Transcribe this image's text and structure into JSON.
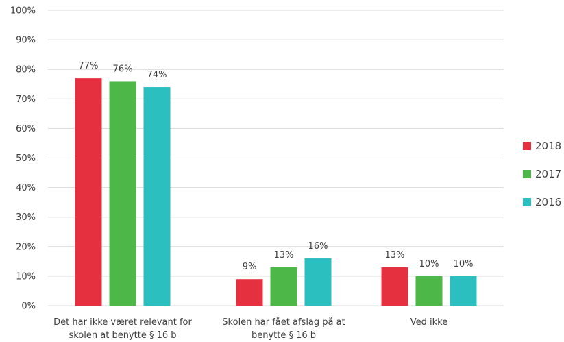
{
  "chart_data": {
    "type": "bar",
    "categories": [
      [
        "Det har ikke været relevant for",
        "skolen at benytte § 16 b"
      ],
      [
        "Skolen har fået afslag på at",
        "benytte § 16 b"
      ],
      [
        "Ved ikke"
      ]
    ],
    "series": [
      {
        "name": "2018",
        "values": [
          77,
          9,
          13
        ],
        "labels": [
          "77%",
          "9%",
          "13%"
        ],
        "color": "#e5303f"
      },
      {
        "name": "2017",
        "values": [
          76,
          13,
          10
        ],
        "labels": [
          "76%",
          "13%",
          "10%"
        ],
        "color": "#4db848"
      },
      {
        "name": "2016",
        "values": [
          74,
          16,
          10
        ],
        "labels": [
          "74%",
          "16%",
          "10%"
        ],
        "color": "#2bbfbf"
      }
    ],
    "yticks": [
      "0%",
      "10%",
      "20%",
      "30%",
      "40%",
      "50%",
      "60%",
      "70%",
      "80%",
      "90%",
      "100%"
    ],
    "ylim": [
      0,
      100
    ],
    "grid": true,
    "legend_position": "right"
  }
}
